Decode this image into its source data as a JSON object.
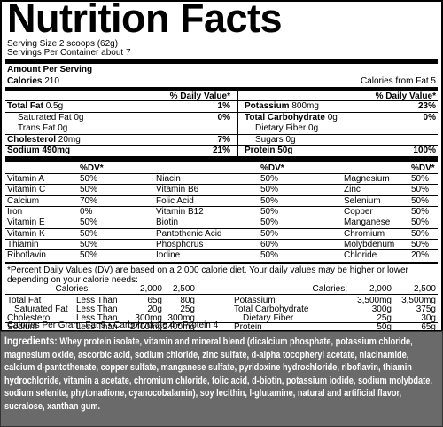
{
  "title": "Nutrition Facts",
  "serving_size": "Serving Size 2 scoops (62g)",
  "servings_per_container": "Servings Per Container about 7",
  "amount_per_serving": "Amount Per Serving",
  "calories": {
    "label": "Calories",
    "value": "210"
  },
  "calories_from_fat": "Calories from Fat 5",
  "dv_header": "% Daily Value*",
  "nutrients": {
    "left": [
      {
        "name": "Total Fat",
        "amount": "0.5g",
        "dv": "1%"
      },
      {
        "name": "Saturated Fat",
        "amount": "0g",
        "dv": "0%"
      },
      {
        "name": "Trans Fat",
        "amount": "0g"
      },
      {
        "name": "Cholesterol",
        "amount": "20mg",
        "dv": "7%"
      },
      {
        "name": "Sodium",
        "amount": "490mg",
        "dv": "21%"
      }
    ],
    "right": [
      {
        "name": "Potassium",
        "amount": "800mg",
        "dv": "23%"
      },
      {
        "name": "Total Carbohydrate",
        "amount": "0g",
        "dv": "0%"
      },
      {
        "name": "Dietary Fiber",
        "amount": "0g"
      },
      {
        "name": "Sugars",
        "amount": "0g"
      },
      {
        "name": "Protein",
        "amount": "50g",
        "dv": "100%"
      }
    ]
  },
  "vitamin_dv_header": "%DV*",
  "vitamins": [
    [
      [
        "Vitamin A",
        "50%"
      ],
      [
        "Niacin",
        "50%"
      ],
      [
        "Magnesium",
        "50%"
      ]
    ],
    [
      [
        "Vitamin C",
        "50%"
      ],
      [
        "Vitamin B6",
        "50%"
      ],
      [
        "Zinc",
        "50%"
      ]
    ],
    [
      [
        "Calcium",
        "70%"
      ],
      [
        "Folic Acid",
        "50%"
      ],
      [
        "Selenium",
        "50%"
      ]
    ],
    [
      [
        "Iron",
        "0%"
      ],
      [
        "Vitamin B12",
        "50%"
      ],
      [
        "Copper",
        "50%"
      ]
    ],
    [
      [
        "Vitamin E",
        "50%"
      ],
      [
        "Biotin",
        "50%"
      ],
      [
        "Manganese",
        "50%"
      ]
    ],
    [
      [
        "Vitamin K",
        "50%"
      ],
      [
        "Pantothenic Acid",
        "50%"
      ],
      [
        "Chromium",
        "50%"
      ]
    ],
    [
      [
        "Thiamin",
        "50%"
      ],
      [
        "Phosphorus",
        "60%"
      ],
      [
        "Molybdenum",
        "50%"
      ]
    ],
    [
      [
        "Riboflavin",
        "50%"
      ],
      [
        "Iodine",
        "50%"
      ],
      [
        "Chloride",
        "20%"
      ]
    ]
  ],
  "footnote": "*Percent Daily Values (DV) are based on a 2,000 calorie diet. Your daily values may be higher or lower depending on your calorie needs:",
  "reference": {
    "header": [
      "Calories:",
      "2,000",
      "2,500"
    ],
    "left": [
      [
        "Total Fat",
        "Less Than",
        "65g",
        "80g"
      ],
      [
        "Saturated Fat",
        "Less Than",
        "20g",
        "25g"
      ],
      [
        "Cholesterol",
        "Less Than",
        "300mg",
        "300mg"
      ],
      [
        "Sodium",
        "Less Than",
        "2400mg",
        "2400mg"
      ]
    ],
    "right": [
      [
        "Potassium",
        "3,500mg",
        "3,500mg"
      ],
      [
        "Total Carbohydrate",
        "300g",
        "375g"
      ],
      [
        "Dietary Fiber",
        "25g",
        "30g"
      ],
      [
        "Protein",
        "50g",
        "65g"
      ]
    ]
  },
  "calories_per_gram": "Calories Per Gram: Fat 9 • Carbohydrate 4 • Protein 4",
  "ingredients": {
    "label": "Ingredients:",
    "text": "Whey protein isolate, vitamin and mineral blend (dicalcium phosphate, potassium chloride, magnesium oxide, ascorbic acid, sodium chloride, zinc sulfate, d-alpha tocopheryl acetate, niacinamide, calcium d-pantothenate, copper sulfate, manganese sulfate, pyridoxine hydrochloride, riboflavin, thiamin hydrochloride, vitamin a acetate, chromium chloride, folic acid, d-biotin, potassium iodide, sodium molybdate, sodium selenite, phytonadione, cyanocobalamin), soy lecithin, l-glutamine, natural and artificial flavor, sucralose, xanthan gum."
  }
}
